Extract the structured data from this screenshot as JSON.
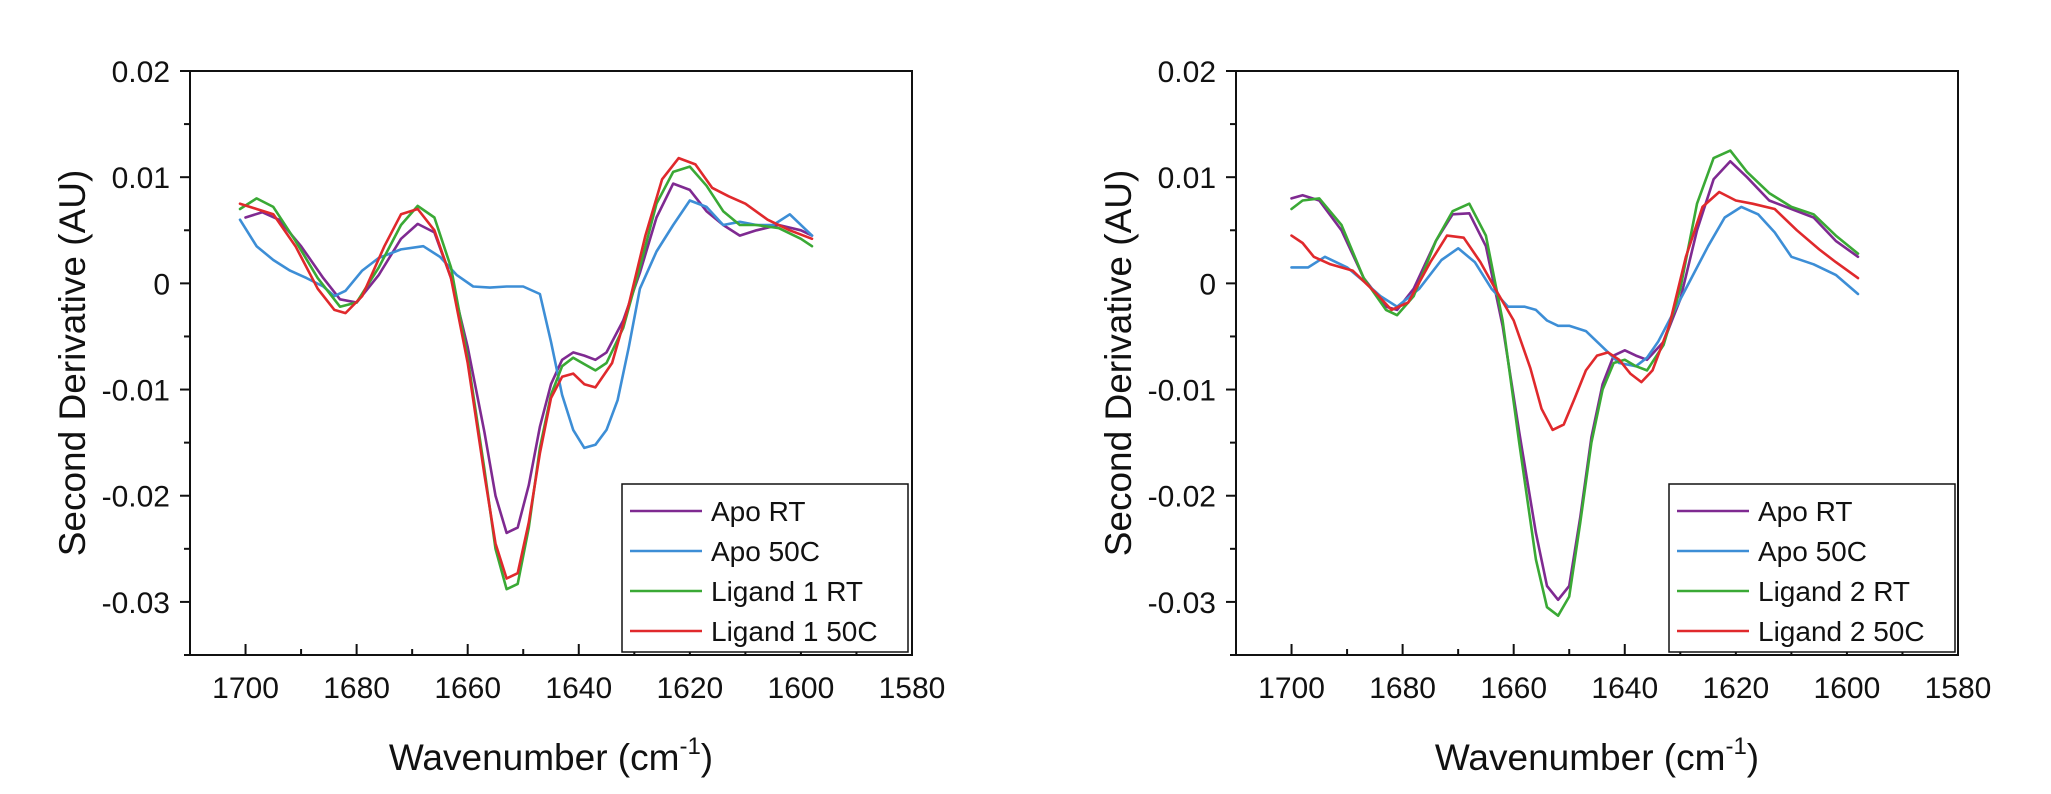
{
  "chart_data": [
    {
      "type": "line",
      "title": "",
      "xlabel": "Wavenumber (cm",
      "xlabel_sup": "-1",
      "xlabel_end": ")",
      "ylabel": "Second Derivative (AU)",
      "xlim": [
        1710,
        1580
      ],
      "ylim": [
        -0.035,
        0.02
      ],
      "x_reversed": true,
      "xticks": [
        "1700",
        "1680",
        "1660",
        "1640",
        "1620",
        "1600",
        "1580"
      ],
      "xtick_values": [
        1700,
        1680,
        1660,
        1640,
        1620,
        1600,
        1580
      ],
      "yticks": [
        "0.02",
        "0.01",
        "0",
        "-0.01",
        "-0.02",
        "-0.03"
      ],
      "ytick_values": [
        0.02,
        0.01,
        0,
        -0.01,
        -0.02,
        -0.03
      ],
      "grid": false,
      "legend_position": "bottom-right",
      "series": [
        {
          "name": "Apo RT",
          "color": "#7f2a91",
          "x": [
            1700,
            1697,
            1694,
            1690,
            1686,
            1683,
            1680,
            1676,
            1672,
            1669,
            1666,
            1663,
            1660,
            1657,
            1655,
            1653,
            1651,
            1649,
            1647,
            1645,
            1643,
            1641,
            1639,
            1637,
            1635,
            1632,
            1629,
            1626,
            1623,
            1620,
            1617,
            1614,
            1611,
            1608,
            1604,
            1600,
            1598
          ],
          "y": [
            0.0062,
            0.0067,
            0.006,
            0.0035,
            0.0005,
            -0.0015,
            -0.0018,
            0.0008,
            0.0042,
            0.0056,
            0.0048,
            0.0005,
            -0.006,
            -0.014,
            -0.02,
            -0.0235,
            -0.023,
            -0.019,
            -0.0135,
            -0.0095,
            -0.0072,
            -0.0065,
            -0.0068,
            -0.0072,
            -0.0065,
            -0.0035,
            0.001,
            0.0062,
            0.0094,
            0.0088,
            0.0068,
            0.0055,
            0.0045,
            0.005,
            0.0055,
            0.005,
            0.0045
          ]
        },
        {
          "name": "Apo 50C",
          "color": "#3d8ed6",
          "x": [
            1701,
            1698,
            1695,
            1692,
            1689,
            1686,
            1684,
            1682,
            1679,
            1676,
            1672,
            1668,
            1665,
            1662,
            1659,
            1656,
            1653,
            1650,
            1647,
            1645,
            1643,
            1641,
            1639,
            1637,
            1635,
            1633,
            1631,
            1629,
            1626,
            1623,
            1620,
            1617,
            1614,
            1611,
            1608,
            1605,
            1602,
            1598
          ],
          "y": [
            0.006,
            0.0035,
            0.0022,
            0.0012,
            0.0005,
            -0.0003,
            -0.0012,
            -0.0007,
            0.0012,
            0.0024,
            0.0032,
            0.0035,
            0.0025,
            0.0008,
            -0.0003,
            -0.0004,
            -0.0003,
            -0.0003,
            -0.001,
            -0.0055,
            -0.0105,
            -0.0138,
            -0.0155,
            -0.0152,
            -0.0138,
            -0.011,
            -0.006,
            -0.0005,
            0.003,
            0.0055,
            0.0078,
            0.0072,
            0.0055,
            0.0058,
            0.0055,
            0.0055,
            0.0065,
            0.0045
          ]
        },
        {
          "name": "Ligand 1 RT",
          "color": "#3aa935",
          "x": [
            1701,
            1698,
            1695,
            1691,
            1687,
            1683,
            1680,
            1676,
            1672,
            1669,
            1666,
            1663,
            1660,
            1657,
            1655,
            1653,
            1651,
            1649,
            1647,
            1645,
            1643,
            1641,
            1639,
            1637,
            1635,
            1632,
            1629,
            1626,
            1623,
            1620,
            1617,
            1614,
            1611,
            1608,
            1604,
            1600,
            1598
          ],
          "y": [
            0.007,
            0.008,
            0.0072,
            0.004,
            0.0005,
            -0.0022,
            -0.0018,
            0.0015,
            0.0055,
            0.0073,
            0.0062,
            0.0015,
            -0.007,
            -0.0175,
            -0.025,
            -0.0288,
            -0.0283,
            -0.023,
            -0.0155,
            -0.0105,
            -0.0078,
            -0.007,
            -0.0076,
            -0.0082,
            -0.0075,
            -0.0042,
            0.0015,
            0.0075,
            0.0105,
            0.011,
            0.0092,
            0.0068,
            0.0055,
            0.0055,
            0.0052,
            0.0042,
            0.0035
          ]
        },
        {
          "name": "Ligand 1 50C",
          "color": "#e0292c",
          "x": [
            1701,
            1698,
            1695,
            1691,
            1687,
            1684,
            1682,
            1679,
            1675,
            1672,
            1669,
            1666,
            1663,
            1660,
            1657,
            1655,
            1653,
            1651,
            1649,
            1647,
            1645,
            1643,
            1641,
            1639,
            1637,
            1634,
            1631,
            1628,
            1625,
            1622,
            1619,
            1616,
            1613,
            1610,
            1606,
            1602,
            1598
          ],
          "y": [
            0.0075,
            0.007,
            0.0065,
            0.0035,
            -0.0005,
            -0.0025,
            -0.0028,
            -0.0012,
            0.0035,
            0.0065,
            0.007,
            0.005,
            0.0005,
            -0.0075,
            -0.018,
            -0.0245,
            -0.0278,
            -0.0273,
            -0.0225,
            -0.016,
            -0.0108,
            -0.0088,
            -0.0085,
            -0.0095,
            -0.0098,
            -0.0075,
            -0.002,
            0.0045,
            0.0098,
            0.0118,
            0.0112,
            0.009,
            0.0082,
            0.0075,
            0.006,
            0.005,
            0.0042
          ]
        }
      ],
      "legend": [
        "Apo RT",
        "Apo 50C",
        "Ligand 1 RT",
        "Ligand 1 50C"
      ]
    },
    {
      "type": "line",
      "title": "",
      "xlabel": "Wavenumber (cm",
      "xlabel_sup": "-1",
      "xlabel_end": ")",
      "ylabel": "Second Derivative (AU)",
      "xlim": [
        1710,
        1580
      ],
      "ylim": [
        -0.035,
        0.02
      ],
      "x_reversed": true,
      "xticks": [
        "1700",
        "1680",
        "1660",
        "1640",
        "1620",
        "1600",
        "1580"
      ],
      "xtick_values": [
        1700,
        1680,
        1660,
        1640,
        1620,
        1600,
        1580
      ],
      "yticks": [
        "0.02",
        "0.01",
        "0",
        "-0.01",
        "-0.02",
        "-0.03"
      ],
      "ytick_values": [
        0.02,
        0.01,
        0,
        -0.01,
        -0.02,
        -0.03
      ],
      "grid": false,
      "legend_position": "bottom-right",
      "series": [
        {
          "name": "Apo RT",
          "color": "#7f2a91",
          "x": [
            1700,
            1698,
            1695,
            1691,
            1687,
            1683,
            1681,
            1678,
            1674,
            1671,
            1668,
            1665,
            1662,
            1659,
            1656,
            1654,
            1652,
            1650,
            1648,
            1646,
            1644,
            1642,
            1640,
            1638,
            1636,
            1633,
            1630,
            1627,
            1624,
            1621,
            1618,
            1614,
            1610,
            1606,
            1602,
            1598
          ],
          "y": [
            0.008,
            0.0083,
            0.0078,
            0.005,
            0.0005,
            -0.0022,
            -0.0025,
            -0.0005,
            0.004,
            0.0065,
            0.0066,
            0.0035,
            -0.004,
            -0.014,
            -0.0235,
            -0.0285,
            -0.0298,
            -0.0285,
            -0.022,
            -0.0145,
            -0.0095,
            -0.0068,
            -0.0063,
            -0.0068,
            -0.0072,
            -0.0055,
            -0.0015,
            0.005,
            0.0098,
            0.0115,
            0.01,
            0.0078,
            0.007,
            0.0062,
            0.004,
            0.0025
          ]
        },
        {
          "name": "Apo 50C",
          "color": "#3d8ed6",
          "x": [
            1700,
            1697,
            1694,
            1690,
            1687,
            1684,
            1681,
            1677,
            1673,
            1670,
            1667,
            1664,
            1661,
            1658,
            1656,
            1654,
            1652,
            1650,
            1647,
            1644,
            1641,
            1638,
            1636,
            1634,
            1631,
            1628,
            1625,
            1622,
            1619,
            1616,
            1613,
            1610,
            1606,
            1602,
            1598
          ],
          "y": [
            0.0015,
            0.0015,
            0.0025,
            0.0015,
            0.0002,
            -0.0012,
            -0.0022,
            -0.0005,
            0.0022,
            0.0033,
            0.002,
            -0.0005,
            -0.0022,
            -0.0022,
            -0.0025,
            -0.0035,
            -0.004,
            -0.004,
            -0.0045,
            -0.006,
            -0.0075,
            -0.0078,
            -0.007,
            -0.0055,
            -0.0025,
            0.0005,
            0.0035,
            0.0062,
            0.0072,
            0.0065,
            0.0048,
            0.0025,
            0.0018,
            0.0008,
            -0.001
          ]
        },
        {
          "name": "Ligand 2 RT",
          "color": "#3aa935",
          "x": [
            1700,
            1698,
            1695,
            1691,
            1687,
            1683,
            1681,
            1678,
            1674,
            1671,
            1668,
            1665,
            1662,
            1659,
            1656,
            1654,
            1652,
            1650,
            1648,
            1646,
            1644,
            1642,
            1640,
            1638,
            1636,
            1633,
            1630,
            1627,
            1624,
            1621,
            1618,
            1614,
            1610,
            1606,
            1602,
            1598
          ],
          "y": [
            0.007,
            0.0078,
            0.008,
            0.0055,
            0.0005,
            -0.0025,
            -0.003,
            -0.0012,
            0.004,
            0.0068,
            0.0075,
            0.0045,
            -0.0035,
            -0.015,
            -0.026,
            -0.0305,
            -0.0313,
            -0.0295,
            -0.0225,
            -0.015,
            -0.01,
            -0.0075,
            -0.0072,
            -0.0078,
            -0.0082,
            -0.0058,
            -0.0005,
            0.0075,
            0.0118,
            0.0125,
            0.0105,
            0.0085,
            0.0072,
            0.0065,
            0.0045,
            0.0028
          ]
        },
        {
          "name": "Ligand 2 50C",
          "color": "#e0292c",
          "x": [
            1700,
            1698,
            1696,
            1693,
            1689,
            1685,
            1682,
            1679,
            1675,
            1672,
            1669,
            1666,
            1663,
            1660,
            1657,
            1655,
            1653,
            1651,
            1649,
            1647,
            1645,
            1643,
            1641,
            1639,
            1637,
            1635,
            1632,
            1629,
            1626,
            1623,
            1620,
            1617,
            1613,
            1609,
            1605,
            1602,
            1598
          ],
          "y": [
            0.0045,
            0.0038,
            0.0025,
            0.0018,
            0.0012,
            -0.0008,
            -0.0025,
            -0.0018,
            0.002,
            0.0045,
            0.0043,
            0.002,
            -0.0008,
            -0.0035,
            -0.008,
            -0.0118,
            -0.0138,
            -0.0133,
            -0.0108,
            -0.0082,
            -0.0068,
            -0.0065,
            -0.0072,
            -0.0085,
            -0.0093,
            -0.0082,
            -0.004,
            0.0025,
            0.0072,
            0.0086,
            0.0078,
            0.0075,
            0.007,
            0.005,
            0.0032,
            0.002,
            0.0005
          ]
        }
      ],
      "legend": [
        "Apo RT",
        "Apo 50C",
        "Ligand 2 RT",
        "Ligand 2 50C"
      ]
    }
  ]
}
